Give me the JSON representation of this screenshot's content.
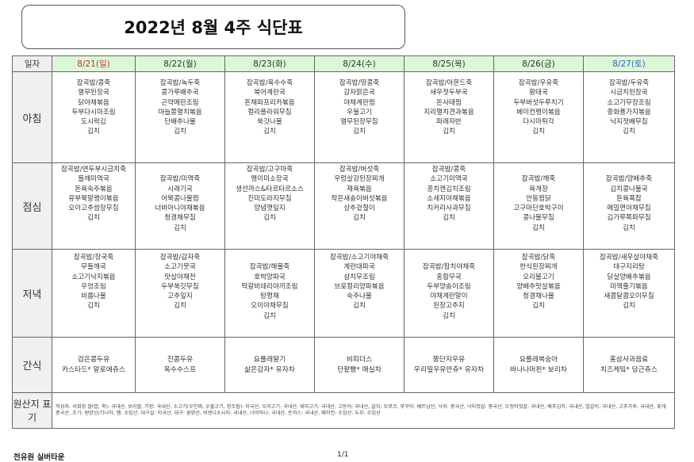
{
  "title": "2022년 8월 4주 식단표",
  "header": {
    "label": "일자",
    "days": [
      {
        "label": "8/21(일)",
        "color": "#c0392b"
      },
      {
        "label": "8/22(월)",
        "color": "#333333"
      },
      {
        "label": "8/23(화)",
        "color": "#333333"
      },
      {
        "label": "8/24(수)",
        "color": "#333333"
      },
      {
        "label": "8/25(목)",
        "color": "#333333"
      },
      {
        "label": "8/26(금)",
        "color": "#333333"
      },
      {
        "label": "8/27(토)",
        "color": "#2e5fb3"
      }
    ]
  },
  "meals": [
    {
      "id": "breakfast",
      "label": "아침",
      "days": [
        "잡곡밥/콩죽\n열무된장국\n닭야채볶음\n두부다시마조림\n도시락김\n김치",
        "잡곡밥/녹두죽\n콩가루배추국\n곤약메란조림\n마늘쫑멸치볶음\n단배추나물\n김치",
        "잡곡밥/옥수수죽\n북어계란국\n돈채파프리카볶음\n컬리플라워무침\n쑥갓나물\n김치",
        "잡곡밥/땅콩죽\n감자맑은국\n야채계란찜\n우불고기\n열무된장무침\n김치",
        "잡곡밥/아몬드죽\n새우젓두부국\n돈사태찜\n지리멸치견과볶음\n파래자반\n김치",
        "잡곡밥/우유죽\n황태국\n두부버섯두루치기\n베이컨팽이볶음\n다시마튀각\n김치",
        "잡곡밥/두유죽\n시금치된장국\n소고기무장조림\n중화풍가지볶음\n낙지젓배무침\n김치"
      ]
    },
    {
      "id": "lunch",
      "label": "점심",
      "days": [
        "잡곡밥/연두부시금치죽\n들깨미역국\n돈육숙주볶음\n유부묵말랭이볶음\n오이고추쌈장무침\n김치",
        "\n잡곡밥/미역죽\n시래기국\n어묵콩나물찜\n너비아니야채볶음\n청경채무침\n김치",
        "잡곡밥/고구마죽\n팽이미소장국\n생선까스&타르타르소스\n진미도라지무침\n양념깻잎지\n김치",
        "잡곡밥/버섯죽\n우렁살강된장찌개\n제육볶음\n작은새송이버섯볶음\n상추겉절이\n김치",
        "잡곡밥/콩죽\n소고기미역국\n꽁치캔김치조림\n소세지야채볶음\n치커리사과무침\n김치",
        "\n잡곡밥/깨죽\n육개장\n안동찜닭\n고구마단호박구이\n콩나물무침\n김치",
        "\n잡곡밥/양배추죽\n김치콩나물국\n돈육폭찹\n메밀면야채무침\n김가루쪽파무침\n김치"
      ]
    },
    {
      "id": "dinner",
      "label": "저녁",
      "days": [
        "잡곡밥/장국죽\n무들깨국\n소고기낙지볶음\n우엉조림\n비름나물\n김치",
        "잡곡밥/감자죽\n소고기뭇국\n맛살야채전\n두부쑥갓무침\n고추잎지\n김치",
        "\n잡곡밥/해물죽\n호박양파국\n떡갈비데리야끼조림\n탕평채\n오이야채무침\n김치",
        "잡곡밥/소고기야채죽\n계란대파국\n삼치무조림\n브로컬리양파볶음\n숙주나물\n김치",
        "\n잡곡밥/참치야채죽\n홍합무국\n두부양송이조림\n야채계란말이\n된장고추지\n김치",
        "잡곡밥/닭죽\n한식된장찌개\n오리불고기\n양배추맛살볶음\n청경채나물\n김치",
        "잡곡밥/새우살야채죽\n대구지리탕\n닭살양배추볶음\n미역줄기볶음\n새콤달콤오이무침\n김치"
      ]
    },
    {
      "id": "snack",
      "label": "간식",
      "days": [
        "검은콩두유\n카스타드* 알로에쥬스",
        "진콩두유\n옥수수스프",
        "요플레딸기\n삶은감자* 유자차",
        "비피더스\n단팥빵* 매실차",
        "뚱단지우유\n우리밀우유만쥬* 유자차",
        "요플레복숭아\n바나나머핀* 보리차",
        "홍삼사과음료\n치즈케잌* 당근쥬스"
      ]
    }
  ],
  "origin": {
    "label": "원산지 표기",
    "text": "작성자: 서희정  쌀(밥, 죽): 국내산, 보리쌀, 기장: 국내산, 소고기(우민찌, 우불고기, 장조림): 미국산, 오리고기: 국내산, 돼지고기: 국내산, 고등어: 국내산, 갈치: 모로코, 쭈꾸미: 베트남산, 낙지: 중국산, 낙지젓갈: 중국산, 오징어젓갈: 국내산, 배추김치: 국내산, 열갈이: 국내산, 고추가루: 국내산, 꽃게: 중국산, 조기: 원양산/기니아, 햄: 수입산, 대구살: 미국산, 대구: 원양산, 비엔나소시지: 국내산, 너비아니: 국내산, 돈까스: 국내산, 베이컨: 수입산, 두부: 수입산"
  },
  "footer": {
    "org": "천유원 실버타운",
    "page": "1/1"
  }
}
